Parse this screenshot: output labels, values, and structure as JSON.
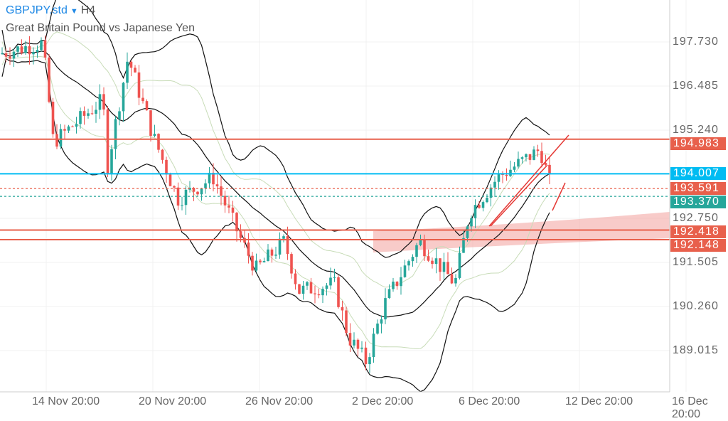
{
  "header": {
    "symbol": "GBPJPY.std",
    "dropdown_icon": "triangle-down",
    "timeframe": "H4",
    "description": "Great Britain Pound vs Japanese Yen"
  },
  "price_axis": {
    "ticks": [
      "197.730",
      "196.485",
      "195.240",
      "192.750",
      "191.505",
      "190.260",
      "189.015"
    ],
    "tick_values": [
      197.73,
      196.485,
      195.24,
      192.75,
      191.505,
      190.26,
      189.015
    ]
  },
  "time_axis": {
    "ticks": [
      "14 Nov 20:00",
      "20 Nov 20:00",
      "26 Nov 20:00",
      "2 Dec 20:00",
      "6 Dec 20:00",
      "12 Dec 20:00",
      "16 Dec 20:00"
    ]
  },
  "levels": [
    {
      "label": "194.983",
      "value": 194.983,
      "color": "#e8604c",
      "style": "solid"
    },
    {
      "label": "194.007",
      "value": 194.007,
      "color": "#00bcf2",
      "style": "solid"
    },
    {
      "label": "193.591",
      "value": 193.591,
      "color": "#e8604c",
      "style": "dotted"
    },
    {
      "label": "193.370",
      "value": 193.37,
      "color": "#26a69a",
      "style": "dotted"
    },
    {
      "label": "192.418",
      "value": 192.418,
      "color": "#e8604c",
      "style": "solid"
    },
    {
      "label": "192.148",
      "value": 192.148,
      "color": "#e8604c",
      "style": "solid"
    }
  ],
  "colors": {
    "up": "#26a69a",
    "down": "#ef5350",
    "band_outer": "#111111",
    "band_inner": "#c8dcb8",
    "zone": "#f4a9a5"
  },
  "price_path": [
    [
      0,
      197.4
    ],
    [
      60,
      197.7
    ],
    [
      75,
      194.9
    ],
    [
      145,
      196.1
    ],
    [
      150,
      194.1
    ],
    [
      180,
      197.3
    ],
    [
      215,
      195.1
    ],
    [
      250,
      193.3
    ],
    [
      300,
      193.9
    ],
    [
      340,
      192.1
    ],
    [
      360,
      191.3
    ],
    [
      400,
      192.1
    ],
    [
      420,
      190.7
    ],
    [
      470,
      190.9
    ],
    [
      490,
      189.4
    ],
    [
      515,
      188.7
    ],
    [
      540,
      190.3
    ],
    [
      590,
      192.1
    ],
    [
      640,
      190.9
    ],
    [
      660,
      192.9
    ],
    [
      700,
      193.9
    ],
    [
      760,
      194.7
    ],
    [
      778,
      193.4
    ]
  ]
}
